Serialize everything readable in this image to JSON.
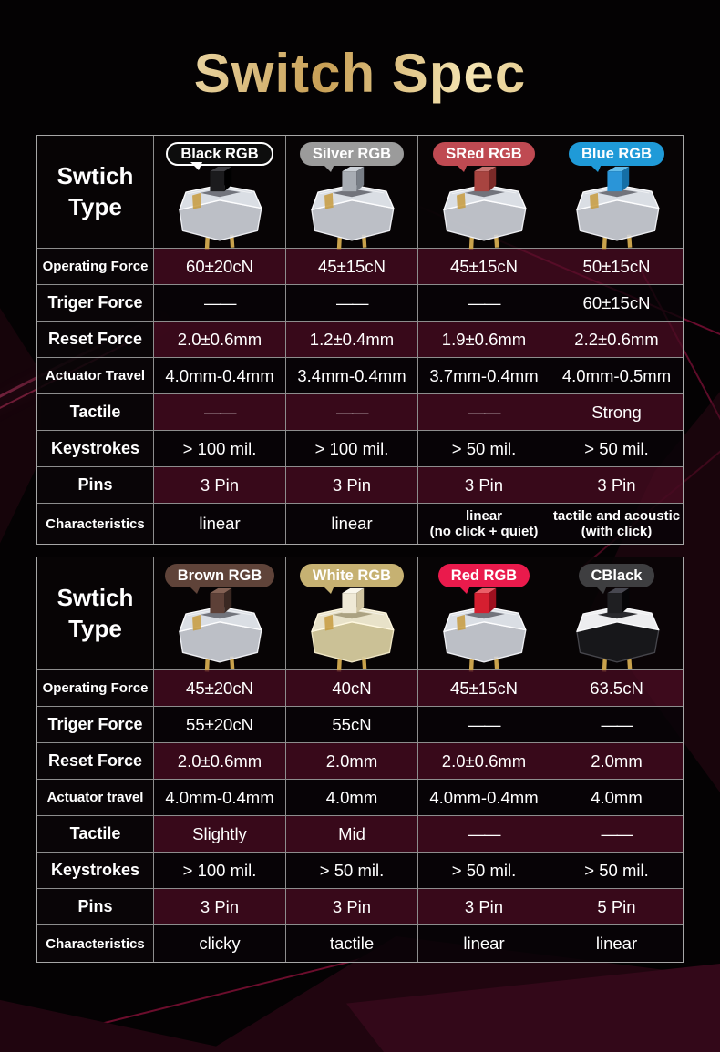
{
  "title": "Switch Spec",
  "accent_colors": {
    "title_gold": "#d8b569",
    "table_border": "#9a9a9a",
    "row_maroon": "#43091f",
    "background_red": "#5a0c24"
  },
  "chart_data": [
    {
      "type": "table",
      "corner_label": "Swtich Type",
      "columns": [
        {
          "label": "Black RGB",
          "badge_bg": "#0d0d0d",
          "badge_border": "#ffffff",
          "badge_tail": "#ffffff",
          "switch": {
            "housing": "clear",
            "stem": "#1b1b1d",
            "stem_light": "#404044",
            "stem_dark": "#000000"
          }
        },
        {
          "label": "Silver RGB",
          "badge_bg": "#9b9b9b",
          "badge_tail": "#9b9b9b",
          "switch": {
            "housing": "clear",
            "stem": "#a7acb3",
            "stem_light": "#ced3d9",
            "stem_dark": "#787e86"
          }
        },
        {
          "label": "SRed RGB",
          "badge_bg": "#bf4a52",
          "badge_tail": "#bf4a52",
          "switch": {
            "housing": "clear",
            "stem": "#a84440",
            "stem_light": "#c77370",
            "stem_dark": "#7a2a28"
          }
        },
        {
          "label": "Blue RGB",
          "badge_bg": "#1f9ad8",
          "badge_tail": "#1f9ad8",
          "switch": {
            "housing": "clear",
            "stem": "#2a95d8",
            "stem_light": "#63bdea",
            "stem_dark": "#156fa6"
          }
        }
      ],
      "rows": [
        {
          "label": "Operating Force",
          "values": [
            "60±20cN",
            "45±15cN",
            "45±15cN",
            "50±15cN"
          ]
        },
        {
          "label": "Triger Force",
          "values": [
            "——",
            "——",
            "——",
            "60±15cN"
          ]
        },
        {
          "label": "Reset Force",
          "values": [
            "2.0±0.6mm",
            "1.2±0.4mm",
            "1.9±0.6mm",
            "2.2±0.6mm"
          ]
        },
        {
          "label": "Actuator Travel",
          "values": [
            "4.0mm-0.4mm",
            "3.4mm-0.4mm",
            "3.7mm-0.4mm",
            "4.0mm-0.5mm"
          ]
        },
        {
          "label": "Tactile",
          "values": [
            "——",
            "——",
            "——",
            "Strong"
          ]
        },
        {
          "label": "Keystrokes",
          "values": [
            "> 100 mil.",
            "> 100 mil.",
            "> 50 mil.",
            "> 50 mil."
          ]
        },
        {
          "label": "Pins",
          "values": [
            "3 Pin",
            "3 Pin",
            "3 Pin",
            "3 Pin"
          ]
        },
        {
          "label": "Characteristics",
          "values": [
            "linear",
            "linear",
            "linear\n(no click + quiet)",
            "tactile and acoustic\n(with click)"
          ]
        }
      ]
    },
    {
      "type": "table",
      "corner_label": "Swtich Type",
      "columns": [
        {
          "label": "Brown RGB",
          "badge_bg": "#5f4339",
          "badge_tail": "#5f4339",
          "switch": {
            "housing": "clear",
            "stem": "#5d4037",
            "stem_light": "#836154",
            "stem_dark": "#3a2822"
          }
        },
        {
          "label": "White RGB",
          "badge_bg": "#c6b172",
          "badge_tail": "#c6b172",
          "switch": {
            "housing": "cream",
            "stem": "#efe9d6",
            "stem_light": "#faf7ec",
            "stem_dark": "#cfc3a0"
          }
        },
        {
          "label": "Red RGB",
          "badge_bg": "#ea1a4c",
          "badge_tail": "#ea1a4c",
          "switch": {
            "housing": "clear",
            "stem": "#d51f30",
            "stem_light": "#ea5f68",
            "stem_dark": "#9d101f"
          }
        },
        {
          "label": "CBlack",
          "badge_bg": "#3e3e40",
          "badge_tail": "#3e3e40",
          "switch": {
            "housing": "blackwhite",
            "stem": "#1f1f22",
            "stem_light": "#474750",
            "stem_dark": "#050507"
          }
        }
      ],
      "rows": [
        {
          "label": "Operating Force",
          "values": [
            "45±20cN",
            "40cN",
            "45±15cN",
            "63.5cN"
          ]
        },
        {
          "label": "Triger Force",
          "values": [
            "55±20cN",
            "55cN",
            "——",
            "——"
          ]
        },
        {
          "label": "Reset Force",
          "values": [
            "2.0±0.6mm",
            "2.0mm",
            "2.0±0.6mm",
            "2.0mm"
          ]
        },
        {
          "label": "Actuator travel",
          "values": [
            "4.0mm-0.4mm",
            "4.0mm",
            "4.0mm-0.4mm",
            "4.0mm"
          ]
        },
        {
          "label": "Tactile",
          "values": [
            "Slightly",
            "Mid",
            "——",
            "——"
          ]
        },
        {
          "label": "Keystrokes",
          "values": [
            "> 100 mil.",
            "> 50 mil.",
            "> 50 mil.",
            "> 50 mil."
          ]
        },
        {
          "label": "Pins",
          "values": [
            "3 Pin",
            "3 Pin",
            "3 Pin",
            "5 Pin"
          ]
        },
        {
          "label": "Characteristics",
          "values": [
            "clicky",
            "tactile",
            "linear",
            "linear"
          ]
        }
      ]
    }
  ]
}
